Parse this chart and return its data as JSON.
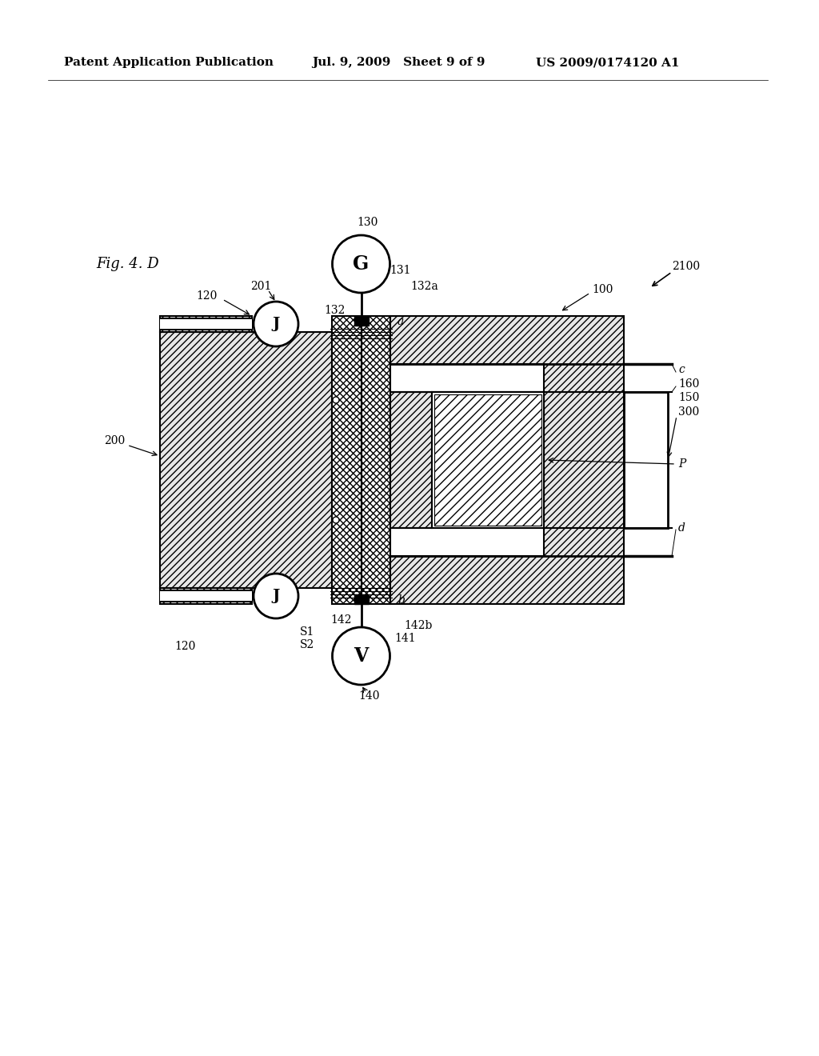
{
  "bg_color": "#ffffff",
  "header_left": "Patent Application Publication",
  "header_mid": "Jul. 9, 2009   Sheet 9 of 9",
  "header_right": "US 2009/0174120 A1",
  "fig_label": "Fig. 4. D"
}
